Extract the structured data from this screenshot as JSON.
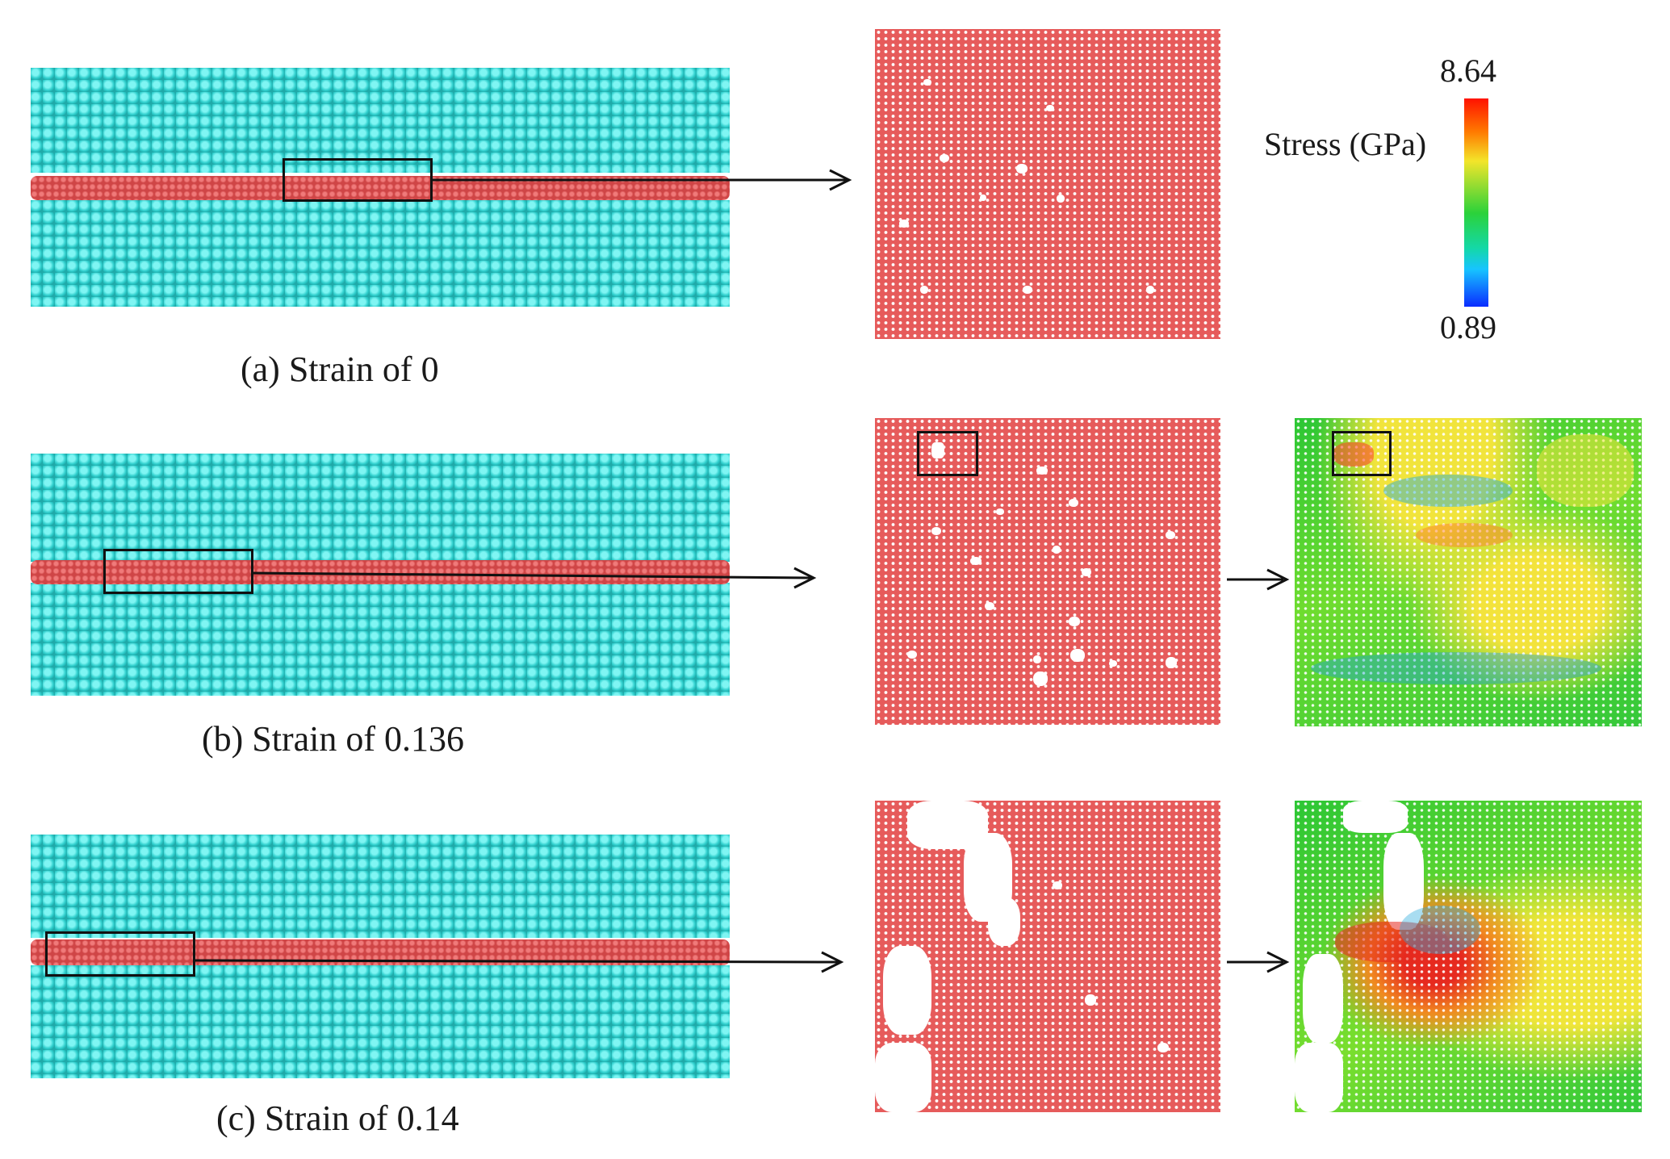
{
  "panels": [
    {
      "id": "a",
      "caption": "(a) Strain of 0"
    },
    {
      "id": "b",
      "caption": "(b) Strain of 0.136"
    },
    {
      "id": "c",
      "caption": "(c) Strain of 0.14"
    }
  ],
  "colorbar": {
    "label": "Stress (GPa)",
    "max": "8.64",
    "min": "0.89",
    "gradient_colors": [
      "#ff1200",
      "#ff7a00",
      "#f3e52a",
      "#2bd23a",
      "#17c4ff",
      "#0a2cff"
    ]
  },
  "colors": {
    "matrix_atoms": "#3fe0de",
    "interface_layer": "#e2595a",
    "lattice_background": "#e65b5b",
    "void": "#ffffff"
  }
}
